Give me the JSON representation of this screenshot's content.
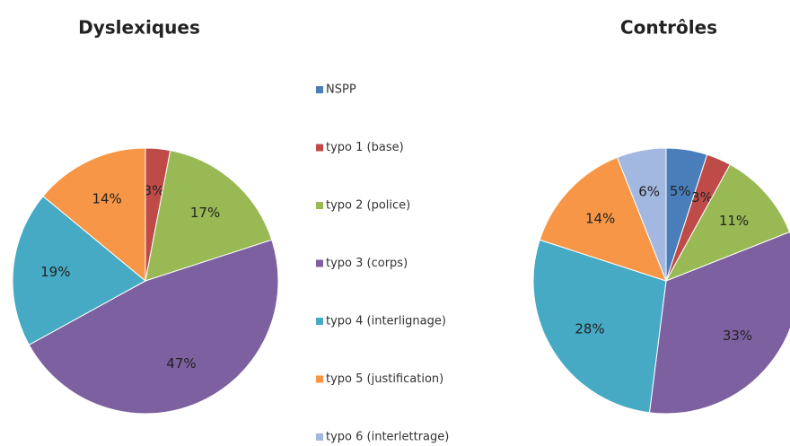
{
  "legend": {
    "categories": [
      "NSPP",
      "typo 1 (base)",
      "typo 2 (police)",
      "typo 3 (corps)",
      "typo 4 (interlignage)",
      "typo 5 (justification)",
      "typo 6 (interlettrage)"
    ],
    "colors": [
      "#4a7ebb",
      "#be4b48",
      "#98b954",
      "#7d60a0",
      "#46aac5",
      "#f79646",
      "#a2b8e0"
    ]
  },
  "chart_data": [
    {
      "type": "pie",
      "title": "Dyslexiques",
      "values": [
        null,
        3,
        17,
        47,
        19,
        14,
        null
      ],
      "value_labels": [
        null,
        "3%",
        "17%",
        "47%",
        "19%",
        "14%",
        null
      ]
    },
    {
      "type": "pie",
      "title": "Contrôles",
      "values": [
        5,
        3,
        11,
        33,
        28,
        14,
        6
      ],
      "value_labels": [
        "5%",
        "3%",
        "11%",
        "33%",
        "28%",
        "14%",
        "6%"
      ]
    }
  ]
}
